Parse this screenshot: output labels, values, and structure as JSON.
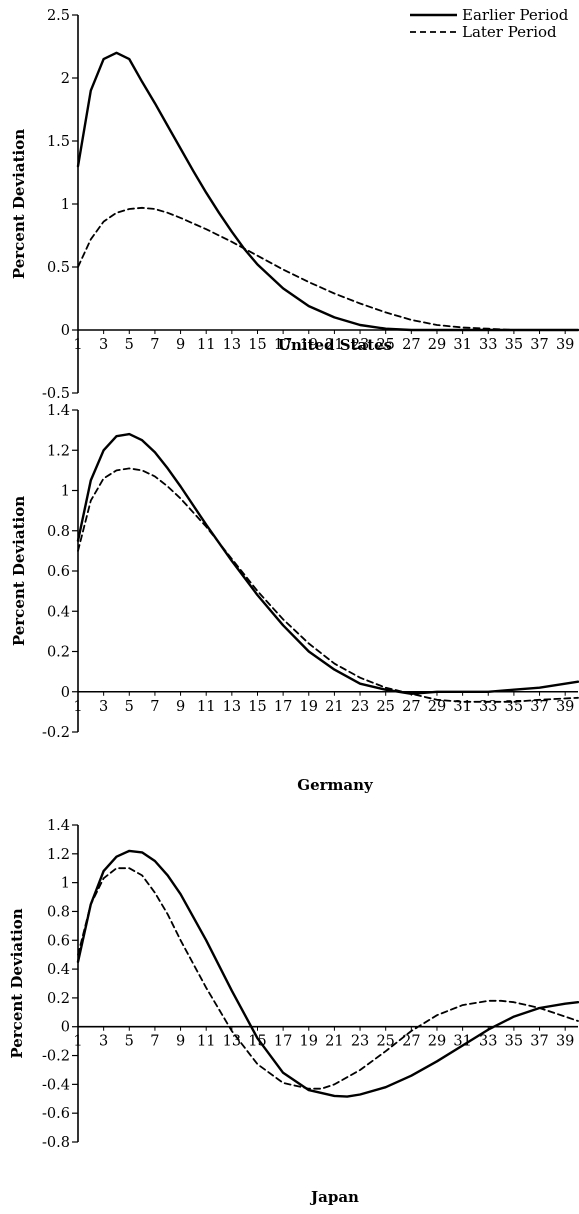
{
  "chart_data": [
    {
      "type": "line",
      "title": "United States",
      "xlabel": "",
      "ylabel": "Percent Deviation",
      "ylim": [
        -0.5,
        2.5
      ],
      "yticks": [
        "2.5",
        "2",
        "1.5",
        "1",
        "0.5",
        "0",
        "-0.5"
      ],
      "x_tick_labels": [
        "1",
        "3",
        "5",
        "7",
        "9",
        "11",
        "13",
        "15",
        "17",
        "19",
        "21",
        "23",
        "25",
        "27",
        "29",
        "31",
        "33",
        "35",
        "37",
        "39"
      ],
      "legend": {
        "position": "top-right",
        "entries": [
          "Earlier Period",
          "Later Period"
        ]
      },
      "grid": false,
      "series": [
        {
          "name": "Earlier Period",
          "style": "solid",
          "x": [
            1,
            2,
            3,
            4,
            5,
            6,
            7,
            8,
            9,
            10,
            11,
            12,
            13,
            14,
            15,
            17,
            19,
            21,
            23,
            25,
            27,
            29,
            31,
            35,
            40
          ],
          "y": [
            1.3,
            1.9,
            2.15,
            2.2,
            2.15,
            1.97,
            1.8,
            1.62,
            1.44,
            1.26,
            1.09,
            0.93,
            0.78,
            0.64,
            0.52,
            0.33,
            0.19,
            0.1,
            0.04,
            0.01,
            0.0,
            0.0,
            0.0,
            0.0,
            0.0
          ]
        },
        {
          "name": "Later Period",
          "style": "dashed",
          "x": [
            1,
            2,
            3,
            4,
            5,
            6,
            7,
            8,
            9,
            11,
            13,
            15,
            17,
            19,
            21,
            23,
            25,
            27,
            29,
            31,
            33,
            35,
            40
          ],
          "y": [
            0.5,
            0.72,
            0.86,
            0.93,
            0.96,
            0.97,
            0.96,
            0.93,
            0.89,
            0.8,
            0.7,
            0.59,
            0.48,
            0.38,
            0.29,
            0.21,
            0.14,
            0.08,
            0.04,
            0.02,
            0.01,
            0.0,
            0.0
          ]
        }
      ]
    },
    {
      "type": "line",
      "title": "Germany",
      "xlabel": "",
      "ylabel": "Percent Deviation",
      "ylim": [
        -0.2,
        1.4
      ],
      "yticks": [
        "1.4",
        "1.2",
        "1",
        "0.8",
        "0.6",
        "0.4",
        "0.2",
        "0",
        "-0.2"
      ],
      "x_tick_labels": [
        "1",
        "3",
        "5",
        "7",
        "9",
        "11",
        "13",
        "15",
        "17",
        "19",
        "21",
        "23",
        "25",
        "27",
        "29",
        "31",
        "33",
        "35",
        "37",
        "39"
      ],
      "grid": false,
      "series": [
        {
          "name": "Earlier Period",
          "style": "solid",
          "x": [
            1,
            2,
            3,
            4,
            5,
            6,
            7,
            8,
            9,
            11,
            13,
            15,
            17,
            19,
            21,
            23,
            25,
            27,
            29,
            31,
            33,
            35,
            37,
            40
          ],
          "y": [
            0.75,
            1.05,
            1.2,
            1.27,
            1.28,
            1.25,
            1.19,
            1.11,
            1.02,
            0.83,
            0.65,
            0.48,
            0.33,
            0.2,
            0.11,
            0.04,
            0.01,
            -0.01,
            0.0,
            0.0,
            0.0,
            0.01,
            0.02,
            0.05
          ]
        },
        {
          "name": "Later Period",
          "style": "dashed",
          "x": [
            1,
            2,
            3,
            4,
            5,
            6,
            7,
            8,
            9,
            11,
            13,
            15,
            17,
            19,
            21,
            23,
            25,
            27,
            29,
            31,
            33,
            35,
            37,
            40
          ],
          "y": [
            0.7,
            0.95,
            1.06,
            1.1,
            1.11,
            1.1,
            1.07,
            1.02,
            0.96,
            0.82,
            0.66,
            0.5,
            0.36,
            0.24,
            0.14,
            0.07,
            0.02,
            -0.01,
            -0.04,
            -0.05,
            -0.05,
            -0.05,
            -0.04,
            -0.03
          ]
        }
      ]
    },
    {
      "type": "line",
      "title": "Japan",
      "xlabel": "",
      "ylabel": "Percent Deviation",
      "ylim": [
        -0.8,
        1.4
      ],
      "yticks": [
        "1.4",
        "1.2",
        "1",
        "0.8",
        "0.6",
        "0.4",
        "0.2",
        "0",
        "-0.2",
        "-0.4",
        "-0.6",
        "-0.8"
      ],
      "x_tick_labels": [
        "1",
        "3",
        "5",
        "7",
        "9",
        "11",
        "13",
        "15",
        "17",
        "19",
        "21",
        "23",
        "25",
        "27",
        "29",
        "31",
        "33",
        "35",
        "37",
        "39"
      ],
      "grid": false,
      "series": [
        {
          "name": "Earlier Period",
          "style": "solid",
          "x": [
            1,
            2,
            3,
            4,
            5,
            6,
            7,
            8,
            9,
            11,
            13,
            15,
            17,
            19,
            21,
            22,
            23,
            25,
            27,
            29,
            31,
            33,
            35,
            37,
            39,
            40
          ],
          "y": [
            0.45,
            0.85,
            1.08,
            1.18,
            1.22,
            1.21,
            1.15,
            1.05,
            0.92,
            0.6,
            0.25,
            -0.08,
            -0.32,
            -0.44,
            -0.48,
            -0.485,
            -0.47,
            -0.42,
            -0.34,
            -0.24,
            -0.13,
            -0.02,
            0.07,
            0.13,
            0.16,
            0.17
          ]
        },
        {
          "name": "Later Period",
          "style": "dashed",
          "x": [
            1,
            2,
            3,
            4,
            5,
            6,
            7,
            8,
            9,
            11,
            13,
            15,
            17,
            19,
            20,
            21,
            23,
            25,
            27,
            29,
            31,
            33,
            34,
            35,
            37,
            39,
            40
          ],
          "y": [
            0.5,
            0.85,
            1.03,
            1.1,
            1.1,
            1.05,
            0.93,
            0.78,
            0.6,
            0.27,
            -0.03,
            -0.26,
            -0.39,
            -0.43,
            -0.43,
            -0.4,
            -0.3,
            -0.17,
            -0.03,
            0.08,
            0.15,
            0.18,
            0.18,
            0.17,
            0.13,
            0.07,
            0.04
          ]
        }
      ]
    }
  ]
}
